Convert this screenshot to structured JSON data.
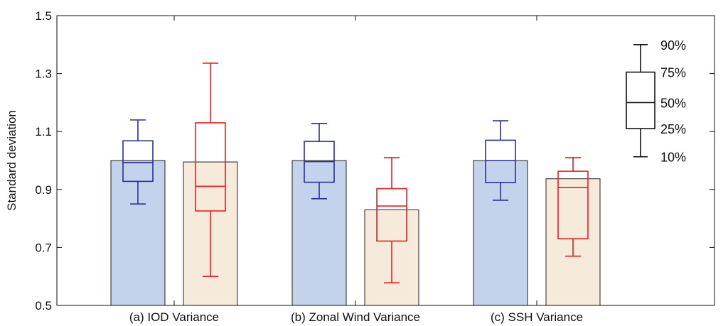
{
  "chart_data": {
    "type": "bar",
    "ylabel": "Standard deviation",
    "ylim": [
      0.5,
      1.5
    ],
    "yticks": [
      "0.5",
      "0.7",
      "0.9",
      "1.1",
      "1.3",
      "1.5"
    ],
    "categories": [
      "(a) IOD Variance",
      "(b) Zonal Wind Variance",
      "(c) SSH Variance"
    ],
    "grid": false,
    "colors": {
      "blue_bar": "#c3d3ec",
      "orange_bar": "#f6eadb",
      "blue_box": "#2b2f91",
      "red_box": "#ee1c24",
      "axis": "#111111"
    },
    "series": [
      {
        "bar_color": "blue",
        "values": [
          1.0,
          1.0,
          1.0
        ],
        "boxes": [
          {
            "p10": 0.85,
            "p25": 0.928,
            "p50": 0.993,
            "p75": 1.068,
            "p90": 1.14
          },
          {
            "p10": 0.868,
            "p25": 0.925,
            "p50": 0.996,
            "p75": 1.066,
            "p90": 1.128
          },
          {
            "p10": 0.863,
            "p25": 0.924,
            "p50": 1.0,
            "p75": 1.07,
            "p90": 1.137
          }
        ]
      },
      {
        "bar_color": "orange",
        "values": [
          0.995,
          0.83,
          0.937
        ],
        "boxes": [
          {
            "p10": 0.6,
            "p25": 0.826,
            "p50": 0.911,
            "p75": 1.13,
            "p90": 1.336
          },
          {
            "p10": 0.578,
            "p25": 0.722,
            "p50": 0.843,
            "p75": 0.903,
            "p90": 1.01
          },
          {
            "p10": 0.67,
            "p25": 0.73,
            "p50": 0.907,
            "p75": 0.963,
            "p90": 1.01
          }
        ]
      }
    ],
    "legend": {
      "placement": "top-right",
      "labels": [
        "90%",
        "75%",
        "50%",
        "25%",
        "10%"
      ],
      "values": [
        1.4,
        1.305,
        1.2,
        1.11,
        1.013
      ]
    }
  }
}
